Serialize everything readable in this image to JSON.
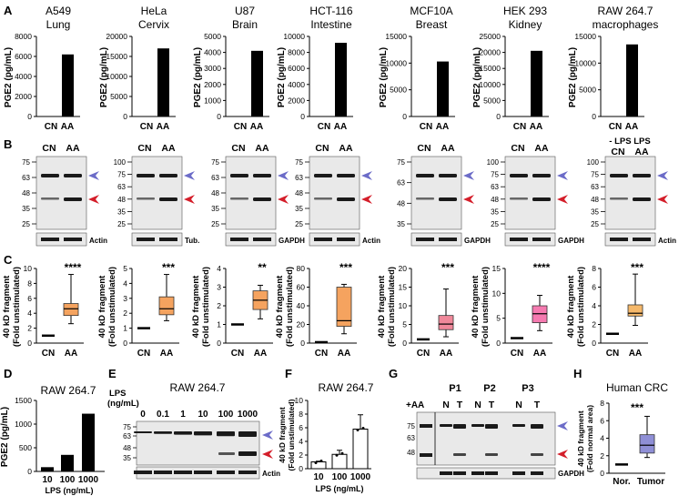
{
  "panel_letters": [
    "A",
    "B",
    "C",
    "D",
    "E",
    "F",
    "G",
    "H"
  ],
  "colors": {
    "bar": "#000000",
    "blue_arrow": "#6c6cc8",
    "red_arrow": "#d41e2a",
    "blot_bg": "#e9e9e9",
    "band": "#1a1a1a"
  },
  "cell_titles": [
    {
      "line1": "A549",
      "line2": "Lung"
    },
    {
      "line1": "HeLa",
      "line2": "Cervix"
    },
    {
      "line1": "U87",
      "line2": "Brain"
    },
    {
      "line1": "HCT-116",
      "line2": "Intestine"
    },
    {
      "line1": "MCF10A",
      "line2": "Breast"
    },
    {
      "line1": "HEK 293",
      "line2": "Kidney"
    },
    {
      "line1": "RAW 264.7",
      "line2": "macrophages"
    }
  ],
  "ylabel_A": "PGE2 (pg/mL)",
  "ylabel_C1": "40 kD fragment",
  "ylabel_C2": "(Fold unstimulated)",
  "cat_CN": "CN",
  "cat_AA": "AA",
  "blot_B": {
    "lps_header": "- LPS LPS",
    "loading": [
      "Actin",
      "Tub.",
      "GAPDH",
      "Actin",
      "GAPDH",
      "GAPDH",
      "Actin"
    ],
    "markers": [
      [
        "75",
        "63",
        "48",
        "35",
        "25"
      ],
      [
        "100",
        "75",
        "63",
        "48",
        "35",
        "25"
      ],
      [
        "75",
        "63",
        "48",
        "35",
        "25"
      ],
      [
        "75",
        "63",
        "48",
        "35",
        "25"
      ],
      [
        "75",
        "63",
        "48",
        "35"
      ],
      [
        "100",
        "75",
        "63",
        "48",
        "35",
        "25"
      ],
      [
        "100",
        "75",
        "63",
        "48",
        "35",
        "25"
      ]
    ]
  },
  "stars_C": [
    "****",
    "***",
    "**",
    "***",
    "***",
    "****",
    "***"
  ],
  "chart_data": [
    {
      "type": "bar",
      "title": "A549 Lung",
      "categories": [
        "CN",
        "AA"
      ],
      "values": [
        0,
        6200
      ],
      "ylabel": "PGE2 (pg/mL)",
      "ylim": [
        0,
        8000
      ],
      "ticks": [
        0,
        2000,
        4000,
        6000,
        8000
      ]
    },
    {
      "type": "bar",
      "title": "HeLa Cervix",
      "categories": [
        "CN",
        "AA"
      ],
      "values": [
        0,
        17000
      ],
      "ylabel": "PGE2 (pg/mL)",
      "ylim": [
        0,
        20000
      ],
      "ticks": [
        0,
        5000,
        10000,
        15000,
        20000
      ]
    },
    {
      "type": "bar",
      "title": "U87 Brain",
      "categories": [
        "CN",
        "AA"
      ],
      "values": [
        0,
        4100
      ],
      "ylabel": "PGE2 (pg/mL)",
      "ylim": [
        0,
        5000
      ],
      "ticks": [
        0,
        1000,
        2000,
        3000,
        4000,
        5000
      ]
    },
    {
      "type": "bar",
      "title": "HCT-116 Intestine",
      "categories": [
        "CN",
        "AA"
      ],
      "values": [
        0,
        9200
      ],
      "ylabel": "PGE2 (pg/mL)",
      "ylim": [
        0,
        10000
      ],
      "ticks": [
        0,
        2000,
        4000,
        6000,
        8000,
        10000
      ]
    },
    {
      "type": "bar",
      "title": "MCF10A Breast",
      "categories": [
        "CN",
        "AA"
      ],
      "values": [
        0,
        10300
      ],
      "ylabel": "PGE2 (pg/mL)",
      "ylim": [
        0,
        15000
      ],
      "ticks": [
        0,
        5000,
        10000,
        15000
      ]
    },
    {
      "type": "bar",
      "title": "HEK 293 Kidney",
      "categories": [
        "CN",
        "AA"
      ],
      "values": [
        0,
        20500
      ],
      "ylabel": "PGE2 (pg/mL)",
      "ylim": [
        0,
        25000
      ],
      "ticks": [
        0,
        5000,
        10000,
        15000,
        20000,
        25000
      ]
    },
    {
      "type": "bar",
      "title": "RAW 264.7 macrophages",
      "categories": [
        "CN",
        "AA"
      ],
      "values": [
        0,
        13500
      ],
      "ylabel": "PGE2 (pg/mL)",
      "ylim": [
        0,
        15000
      ],
      "ticks": [
        0,
        5000,
        10000,
        15000
      ]
    },
    {
      "type": "box",
      "categories": [
        "CN",
        "AA"
      ],
      "ylim": [
        0,
        10
      ],
      "ticks": [
        0,
        2,
        4,
        6,
        8,
        10
      ],
      "aa": {
        "min": 2.6,
        "q1": 3.7,
        "med": 4.6,
        "q3": 5.3,
        "max": 9.2
      },
      "significance": "****"
    },
    {
      "type": "box",
      "categories": [
        "CN",
        "AA"
      ],
      "ylim": [
        0,
        5
      ],
      "ticks": [
        0,
        1,
        2,
        3,
        4,
        5
      ],
      "aa": {
        "min": 1.5,
        "q1": 1.9,
        "med": 2.3,
        "q3": 3.1,
        "max": 4.6
      },
      "significance": "***"
    },
    {
      "type": "box",
      "categories": [
        "CN",
        "AA"
      ],
      "ylim": [
        0,
        4
      ],
      "ticks": [
        0,
        1,
        2,
        3,
        4
      ],
      "aa": {
        "min": 1.3,
        "q1": 1.8,
        "med": 2.3,
        "q3": 2.8,
        "max": 3.1
      },
      "significance": "**"
    },
    {
      "type": "box",
      "categories": [
        "CN",
        "AA"
      ],
      "ylim": [
        0,
        80
      ],
      "ticks": [
        0,
        20,
        40,
        60,
        80
      ],
      "aa": {
        "min": 10,
        "q1": 18,
        "med": 24,
        "q3": 60,
        "max": 63
      },
      "significance": "***"
    },
    {
      "type": "box",
      "categories": [
        "CN",
        "AA"
      ],
      "ylim": [
        0,
        20
      ],
      "ticks": [
        0,
        5,
        10,
        15,
        20
      ],
      "aa": {
        "min": 1.7,
        "q1": 3.6,
        "med": 5.1,
        "q3": 7.4,
        "max": 14.5
      },
      "significance": "***"
    },
    {
      "type": "box",
      "categories": [
        "CN",
        "AA"
      ],
      "ylim": [
        0,
        15
      ],
      "ticks": [
        0,
        5,
        10,
        15
      ],
      "aa": {
        "min": 2.5,
        "q1": 4.1,
        "med": 5.9,
        "q3": 7.5,
        "max": 9.6
      },
      "significance": "****"
    },
    {
      "type": "box",
      "categories": [
        "CN",
        "AA"
      ],
      "ylim": [
        0,
        8
      ],
      "ticks": [
        0,
        2,
        4,
        6,
        8
      ],
      "aa": {
        "min": 1.9,
        "q1": 2.9,
        "med": 3.2,
        "q3": 4.1,
        "max": 7.4
      },
      "significance": "***"
    },
    {
      "type": "bar",
      "title": "RAW 264.7",
      "categories": [
        "10",
        "100",
        "1000"
      ],
      "values": [
        90,
        350,
        1220
      ],
      "xlabel": "LPS (ng/mL)",
      "ylabel": "PGE2 (pg/mL)",
      "ylim": [
        0,
        1500
      ],
      "ticks": [
        0,
        500,
        1000,
        1500
      ]
    },
    {
      "type": "bar",
      "title": "RAW 264.7",
      "categories": [
        "10",
        "100",
        "1000"
      ],
      "values": [
        1,
        2.1,
        5.8
      ],
      "errors": [
        0.1,
        0.6,
        2.1
      ],
      "xlabel": "LPS (ng/mL)",
      "ylabel": "40 kD fragment (Fold unstimulated)",
      "ylim": [
        0,
        10
      ],
      "ticks": [
        0,
        2,
        4,
        6,
        8,
        10
      ]
    },
    {
      "type": "box",
      "title": "Human CRC",
      "categories": [
        "Nor.",
        "Tumor"
      ],
      "ylabel": "40 kD fragment (Fold normal area)",
      "ylim": [
        0,
        8
      ],
      "ticks": [
        0,
        2,
        4,
        6,
        8
      ],
      "box": {
        "min": 1.8,
        "q1": 2.3,
        "med": 3.2,
        "q3": 4.4,
        "max": 6.5
      },
      "significance": "***"
    }
  ],
  "panel_D": {
    "title": "RAW 264.7",
    "xlabel": "LPS (ng/mL)",
    "ylabel": "PGE2 (pg/mL)"
  },
  "panel_E": {
    "title": "RAW 264.7",
    "lps_label1": "LPS",
    "lps_label2": "(ng/mL)",
    "lanes": [
      "0",
      "0.1",
      "1",
      "10",
      "100",
      "1000"
    ],
    "markers": [
      "75",
      "63",
      "48",
      "35"
    ],
    "loading": "Actin"
  },
  "panel_F": {
    "title": "RAW 264.7",
    "xlabel": "LPS (ng/mL)",
    "ylabel1": "40 kD fragment",
    "ylabel2": "(Fold unstimulated)"
  },
  "panel_G": {
    "patients": [
      "P1",
      "P2",
      "P3"
    ],
    "aa_label": "+AA",
    "lanes": [
      "N",
      "T",
      "N",
      "T",
      "N",
      "T"
    ],
    "markers": [
      "75",
      "63",
      "48"
    ],
    "loading": "GAPDH"
  },
  "panel_H": {
    "title": "Human CRC",
    "ylabel1": "40 kD fragment",
    "ylabel2": "(Fold normal area)"
  }
}
